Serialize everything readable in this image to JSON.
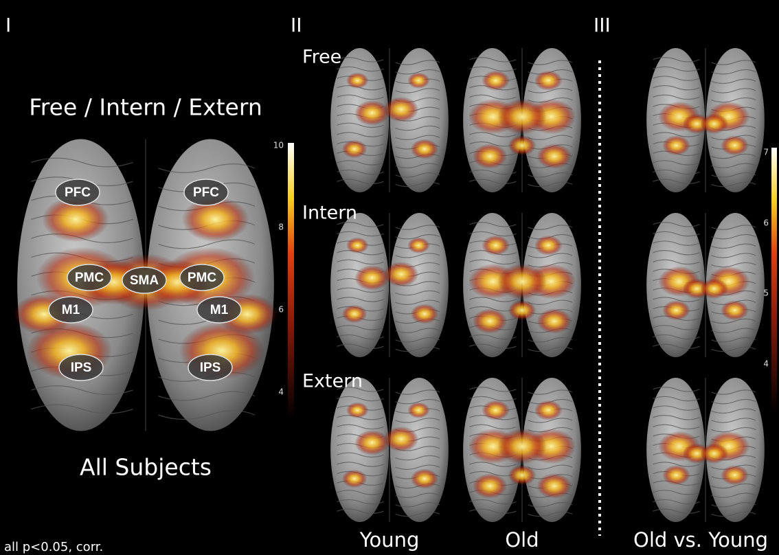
{
  "panels": [
    {
      "label": "I",
      "title": "Free / Intern / Extern",
      "caption": "All Subjects",
      "regions": [
        "PFC",
        "PFC",
        "PMC",
        "SMA",
        "PMC",
        "M1",
        "M1",
        "IPS",
        "IPS"
      ]
    },
    {
      "label": "II",
      "rows": [
        "Free",
        "Intern",
        "Extern"
      ],
      "columns": [
        "Young",
        "Old"
      ]
    },
    {
      "label": "III",
      "column": "Old vs. Young"
    }
  ],
  "colorbars": [
    {
      "ticks": [
        10,
        8,
        6,
        4
      ]
    },
    {
      "ticks": [
        7,
        6,
        5,
        4
      ]
    }
  ],
  "footnote": "all p<0.05, corr."
}
